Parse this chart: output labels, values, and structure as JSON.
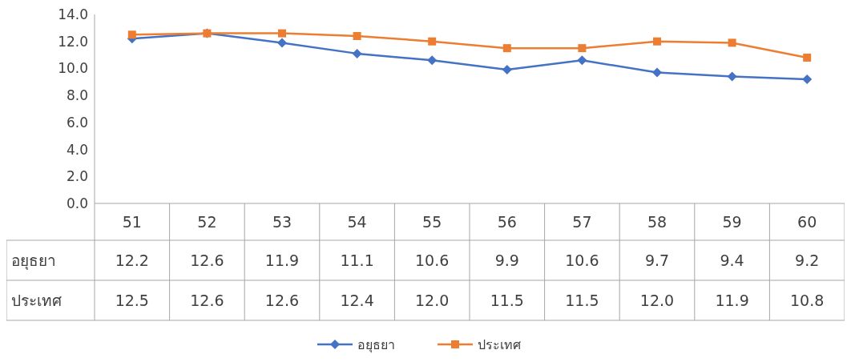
{
  "chart_data": {
    "type": "line",
    "categories": [
      "51",
      "52",
      "53",
      "54",
      "55",
      "56",
      "57",
      "58",
      "59",
      "60"
    ],
    "series": [
      {
        "name": "อยุธยา",
        "color": "#4472c4",
        "marker": "diamond",
        "values": [
          12.2,
          12.6,
          11.9,
          11.1,
          10.6,
          9.9,
          10.6,
          9.7,
          9.4,
          9.2
        ],
        "value_labels": [
          "12.2",
          "12.6",
          "11.9",
          "11.1",
          "10.6",
          "9.9",
          "10.6",
          "9.7",
          "9.4",
          "9.2"
        ]
      },
      {
        "name": "ประเทศ",
        "color": "#ed7d31",
        "marker": "square",
        "values": [
          12.5,
          12.6,
          12.6,
          12.4,
          12.0,
          11.5,
          11.5,
          12.0,
          11.9,
          10.8
        ],
        "value_labels": [
          "12.5",
          "12.6",
          "12.6",
          "12.4",
          "12.0",
          "11.5",
          "11.5",
          "12.0",
          "11.9",
          "10.8"
        ]
      }
    ],
    "ylim": [
      0,
      14
    ],
    "yticks": [
      {
        "value": 0,
        "label": "0.0"
      },
      {
        "value": 2,
        "label": "2.0"
      },
      {
        "value": 4,
        "label": "4.0"
      },
      {
        "value": 6,
        "label": "6.0"
      },
      {
        "value": 8,
        "label": "8.0"
      },
      {
        "value": 10,
        "label": "10.0"
      },
      {
        "value": 12,
        "label": "12.0"
      },
      {
        "value": 14,
        "label": "14.0"
      }
    ],
    "legend": "bottom"
  }
}
